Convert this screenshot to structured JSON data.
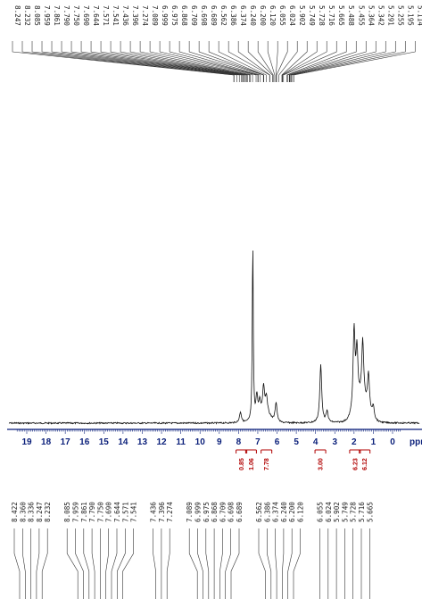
{
  "chart_data": {
    "type": "line",
    "xlabel": "ppm",
    "x_reversed": true,
    "xlim": [
      19.8,
      -0.6
    ],
    "ticks": [
      19,
      18,
      17,
      16,
      15,
      14,
      13,
      12,
      11,
      10,
      9,
      8,
      7,
      6,
      5,
      4,
      3,
      2,
      1,
      0
    ],
    "top_peaks": [
      "8.247",
      "8.232",
      "8.085",
      "7.959",
      "7.861",
      "7.790",
      "7.750",
      "7.690",
      "7.644",
      "7.571",
      "7.541",
      "7.436",
      "7.396",
      "7.274",
      "7.089",
      "6.999",
      "6.975",
      "6.868",
      "6.709",
      "6.698",
      "6.689",
      "6.562",
      "6.386",
      "6.374",
      "6.240",
      "6.200",
      "6.120",
      "6.055",
      "6.024",
      "5.902",
      "5.749",
      "5.728",
      "5.716",
      "5.665",
      "5.488",
      "5.455",
      "5.364",
      "5.342",
      "5.291",
      "5.255",
      "5.195",
      "5.114"
    ],
    "bottom_peaks": [
      "8.422",
      "8.360",
      "8.336",
      "8.247",
      "8.232",
      "8.085",
      "7.959",
      "7.861",
      "7.790",
      "7.750",
      "7.690",
      "7.644",
      "7.571",
      "7.541",
      "7.436",
      "7.396",
      "7.274",
      "7.089",
      "6.999",
      "6.975",
      "6.868",
      "6.709",
      "6.698",
      "6.689",
      "6.562",
      "6.386",
      "6.374",
      "6.240",
      "6.200",
      "6.120",
      "6.055",
      "6.024",
      "5.902",
      "5.749",
      "5.728",
      "5.716",
      "5.665"
    ],
    "integrals": [
      {
        "ppm": 7.85,
        "value": "0.85"
      },
      {
        "ppm": 7.35,
        "value": "1.06"
      },
      {
        "ppm": 6.55,
        "value": "7.78"
      },
      {
        "ppm": 3.75,
        "value": "3.00"
      },
      {
        "ppm": 1.95,
        "value": "6.23"
      },
      {
        "ppm": 1.45,
        "value": "6.12"
      }
    ],
    "spectrum_peaks": [
      {
        "ppm": 7.26,
        "height": 1.0
      },
      {
        "ppm": 7.05,
        "height": 0.13
      },
      {
        "ppm": 6.9,
        "height": 0.08
      },
      {
        "ppm": 6.7,
        "height": 0.15
      },
      {
        "ppm": 6.55,
        "height": 0.09
      },
      {
        "ppm": 6.05,
        "height": 0.11
      },
      {
        "ppm": 7.9,
        "height": 0.06
      },
      {
        "ppm": 3.73,
        "height": 0.32
      },
      {
        "ppm": 3.4,
        "height": 0.06
      },
      {
        "ppm": 2.0,
        "height": 0.45
      },
      {
        "ppm": 1.85,
        "height": 0.3
      },
      {
        "ppm": 1.55,
        "height": 0.33
      },
      {
        "ppm": 1.25,
        "height": 0.2
      },
      {
        "ppm": 1.0,
        "height": 0.07
      }
    ]
  }
}
